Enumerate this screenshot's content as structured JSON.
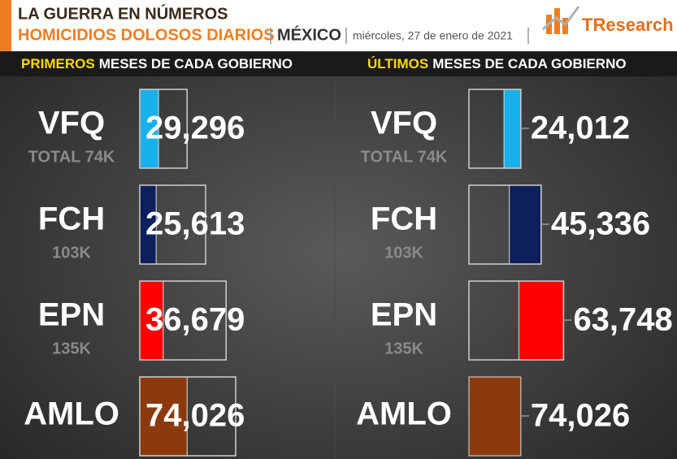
{
  "header": {
    "title": "LA GUERRA EN NÚMEROS",
    "subtitle": "HOMICIDIOS DOLOSOS DIARIOS",
    "country": "MÉXICO",
    "date": "miércoles, 27 de enero de 2021",
    "brand": "TResearch"
  },
  "chart_data": [
    {
      "type": "bar",
      "highlight": "PRIMEROS",
      "title": "MESES DE CADA GOBIERNO",
      "categories": [
        "VFQ",
        "FCH",
        "EPN",
        "AMLO"
      ],
      "colors": [
        "#1ab0ea",
        "#0d1f5c",
        "#ff0000",
        "#8b3a0e"
      ],
      "values": [
        29296,
        25613,
        36679,
        74026
      ],
      "value_labels": [
        "29,296",
        "25,613",
        "36,679",
        "74,026"
      ],
      "totals": [
        74000,
        103000,
        135000,
        150000
      ],
      "total_labels": [
        "TOTAL 74K",
        "103K",
        "135K",
        null
      ],
      "xlim": [
        0,
        150000
      ],
      "align": "left"
    },
    {
      "type": "bar",
      "highlight": "ÚLTIMOS",
      "title": "MESES DE CADA GOBIERNO",
      "categories": [
        "VFQ",
        "FCH",
        "EPN",
        "AMLO"
      ],
      "colors": [
        "#1ab0ea",
        "#0d1f5c",
        "#ff0000",
        "#8b3a0e"
      ],
      "values": [
        24012,
        45336,
        63748,
        74026
      ],
      "value_labels": [
        "24,012",
        "45,336",
        "63,748",
        "74,026"
      ],
      "totals": [
        74000,
        103000,
        135000,
        null
      ],
      "total_labels": [
        "TOTAL 74K",
        "103K",
        "135K",
        null
      ],
      "xlim": [
        0,
        160000
      ],
      "align": "right"
    }
  ]
}
